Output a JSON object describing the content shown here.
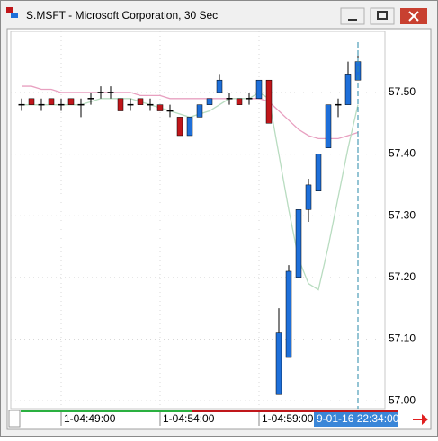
{
  "window_title": "S.MSFT - Microsoft Corporation, 30 Sec",
  "chart_data": {
    "type": "candlestick",
    "open": [
      57.48,
      57.49,
      57.48,
      57.49,
      57.48,
      57.49,
      57.48,
      57.49,
      57.5,
      57.5,
      57.49,
      57.48,
      57.49,
      57.48,
      57.48,
      57.47,
      57.46,
      57.43,
      57.46,
      57.48,
      57.5,
      57.49,
      57.49,
      57.49,
      57.49,
      57.52,
      57.01,
      57.07,
      57.2,
      57.31,
      57.34,
      57.41,
      57.48,
      57.48,
      57.52
    ],
    "high": [
      57.49,
      57.49,
      57.49,
      57.49,
      57.49,
      57.49,
      57.49,
      57.5,
      57.51,
      57.51,
      57.49,
      57.49,
      57.49,
      57.49,
      57.48,
      57.48,
      57.46,
      57.46,
      57.48,
      57.49,
      57.53,
      57.5,
      57.49,
      57.5,
      57.52,
      57.52,
      57.15,
      57.22,
      57.31,
      57.36,
      57.4,
      57.48,
      57.49,
      57.55,
      57.56
    ],
    "low": [
      57.47,
      57.48,
      57.47,
      57.48,
      57.47,
      57.48,
      57.46,
      57.48,
      57.49,
      57.49,
      57.47,
      57.47,
      57.48,
      57.47,
      57.47,
      57.46,
      57.43,
      57.43,
      57.46,
      57.48,
      57.5,
      57.48,
      57.48,
      57.48,
      57.49,
      57.45,
      57.01,
      57.07,
      57.2,
      57.29,
      57.34,
      57.41,
      57.46,
      57.48,
      57.52
    ],
    "close": [
      57.48,
      57.48,
      57.48,
      57.48,
      57.48,
      57.48,
      57.48,
      57.49,
      57.5,
      57.5,
      57.47,
      57.48,
      57.48,
      57.48,
      57.47,
      57.47,
      57.43,
      57.46,
      57.48,
      57.49,
      57.52,
      57.49,
      57.48,
      57.49,
      57.52,
      57.45,
      57.11,
      57.21,
      57.31,
      57.35,
      57.4,
      57.48,
      57.48,
      57.53,
      57.55
    ],
    "up_color": "#1e6fd9",
    "down_color": "#c0161a",
    "series": [
      {
        "color": "#e8a0c0",
        "values": [
          57.51,
          57.51,
          57.505,
          57.505,
          57.5,
          57.5,
          57.5,
          57.5,
          57.5,
          57.5,
          57.5,
          57.5,
          57.495,
          57.495,
          57.495,
          57.49,
          57.49,
          57.49,
          57.49,
          57.49,
          57.49,
          57.49,
          57.49,
          57.49,
          57.49,
          57.485,
          57.47,
          57.455,
          57.44,
          57.43,
          57.425,
          57.425,
          57.425,
          57.43,
          57.435
        ]
      },
      {
        "color": "#b8dcc0",
        "values": [
          57.48,
          57.48,
          57.48,
          57.48,
          57.48,
          57.48,
          57.48,
          57.485,
          57.49,
          57.49,
          57.49,
          57.49,
          57.485,
          57.48,
          57.475,
          57.47,
          57.465,
          57.46,
          57.465,
          57.47,
          57.48,
          57.49,
          57.49,
          57.49,
          57.5,
          57.49,
          57.4,
          57.31,
          57.23,
          57.19,
          57.18,
          57.25,
          57.33,
          57.41,
          57.48
        ]
      }
    ],
    "ylim": [
      56.987,
      57.599
    ],
    "yticks": [
      {
        "value": 57.0,
        "label": "57.00"
      },
      {
        "value": 57.1,
        "label": "57.10"
      },
      {
        "value": 57.2,
        "label": "57.20"
      },
      {
        "value": 57.3,
        "label": "57.30"
      },
      {
        "value": 57.4,
        "label": "57.40"
      },
      {
        "value": 57.5,
        "label": "57.50"
      }
    ],
    "xticks": [
      {
        "value": 4,
        "label": "1-04:49:00"
      },
      {
        "value": 14,
        "label": "1-04:54:00"
      },
      {
        "value": 24,
        "label": "1-04:59:00"
      }
    ],
    "cursor": {
      "index": 34,
      "label": "9-01-16 22:34:00"
    }
  }
}
